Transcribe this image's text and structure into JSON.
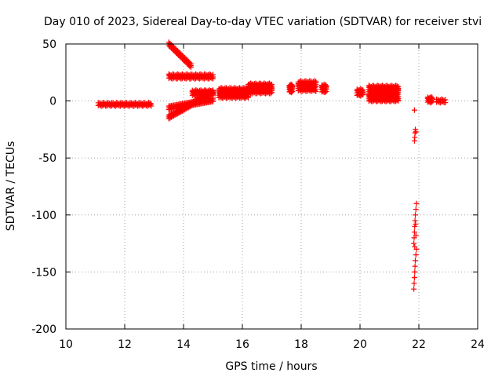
{
  "chart_data": {
    "type": "scatter",
    "title": "Day 010 of 2023, Sidereal Day-to-day VTEC variation (SDTVAR) for receiver stvi",
    "xlabel": "GPS time / hours",
    "ylabel": "SDTVAR / TECUs",
    "xlim": [
      10,
      24
    ],
    "ylim": [
      -200,
      50
    ],
    "xticks": [
      10,
      12,
      14,
      16,
      18,
      20,
      22,
      24
    ],
    "yticks": [
      -200,
      -150,
      -100,
      -50,
      0,
      50
    ],
    "grid": true,
    "legend": "none",
    "marker": "plus",
    "color": "#ff0000",
    "segments": [
      {
        "x0": 11.1,
        "x1": 12.9,
        "y": [
          -4,
          -2
        ],
        "shape": "flat"
      },
      {
        "x0": 13.5,
        "x1": 14.25,
        "y0": 50,
        "y1": 31,
        "w": 3,
        "shape": "line"
      },
      {
        "x0": 13.5,
        "x1": 15.0,
        "y": [
          20,
          23
        ],
        "shape": "flat"
      },
      {
        "x0": 13.5,
        "x1": 15.0,
        "y0": -14,
        "y1": 8,
        "w": 3,
        "shape": "line"
      },
      {
        "x0": 13.5,
        "x1": 15.0,
        "y0": -6,
        "y1": 1,
        "w": 3,
        "shape": "line"
      },
      {
        "x0": 14.3,
        "x1": 15.0,
        "y": [
          5,
          9
        ],
        "shape": "flat"
      },
      {
        "x0": 15.2,
        "x1": 16.2,
        "y": [
          3,
          11
        ],
        "shape": "flat"
      },
      {
        "x0": 16.2,
        "x1": 17.0,
        "y": [
          7,
          15
        ],
        "shape": "flat"
      },
      {
        "x0": 17.6,
        "x1": 17.7,
        "y": [
          8,
          14
        ],
        "shape": "flat"
      },
      {
        "x0": 17.9,
        "x1": 18.5,
        "y": [
          9,
          17
        ],
        "shape": "flat"
      },
      {
        "x0": 18.7,
        "x1": 18.85,
        "y": [
          8,
          14
        ],
        "shape": "flat"
      },
      {
        "x0": 19.9,
        "x1": 20.1,
        "y": [
          5,
          10
        ],
        "shape": "flat"
      },
      {
        "x0": 20.3,
        "x1": 21.3,
        "y": [
          0,
          13
        ],
        "shape": "flat"
      },
      {
        "x0": 22.3,
        "x1": 22.45,
        "y": [
          -1,
          3
        ],
        "shape": "flat"
      },
      {
        "x0": 22.6,
        "x1": 22.9,
        "y": [
          -1,
          1
        ],
        "shape": "flat"
      }
    ],
    "points": [
      [
        21.85,
        -8
      ],
      [
        21.88,
        -25
      ],
      [
        21.87,
        -28
      ],
      [
        21.86,
        -32
      ],
      [
        21.85,
        -35
      ],
      [
        21.9,
        -27
      ],
      [
        21.92,
        -90
      ],
      [
        21.9,
        -95
      ],
      [
        21.88,
        -100
      ],
      [
        21.87,
        -105
      ],
      [
        21.86,
        -110
      ],
      [
        21.85,
        -115
      ],
      [
        21.84,
        -120
      ],
      [
        21.83,
        -125
      ],
      [
        21.86,
        -128
      ],
      [
        21.9,
        -135
      ],
      [
        21.88,
        -140
      ],
      [
        21.87,
        -145
      ],
      [
        21.86,
        -150
      ],
      [
        21.85,
        -155
      ],
      [
        21.84,
        -160
      ],
      [
        21.83,
        -165
      ],
      [
        21.92,
        -130
      ],
      [
        21.9,
        -118
      ],
      [
        21.89,
        -108
      ]
    ]
  }
}
